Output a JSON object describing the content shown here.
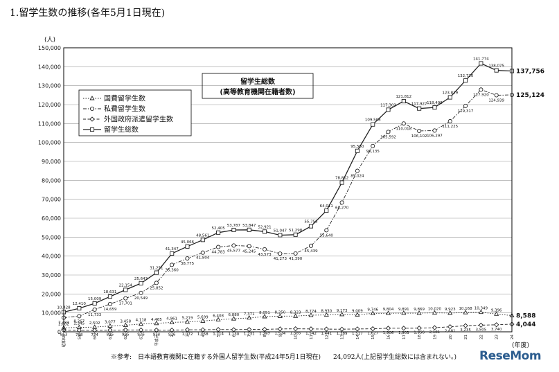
{
  "title": "1.留学生数の推移(各年5月1日現在)",
  "unit_label": "(人)",
  "x_unit_label": "(年度)",
  "footnote": "※参考:　日本語教育機関に在籍する外国人留学生数(平成24年5月1日現在)　　24,092人(上記留学生総数には含まれない。)",
  "watermark": "ReseMom",
  "colors": {
    "line": "#222222",
    "grid": "#9a9a9a",
    "frame": "#000000"
  },
  "chart_data": {
    "type": "line",
    "title": "",
    "annotation": [
      "留学生総数",
      "(高等教育機関在籍者数)"
    ],
    "xlabel": "(年度)",
    "ylabel": "(人)",
    "ylim": [
      0,
      150000
    ],
    "yticks": [
      "0",
      "10,000",
      "20,000",
      "30,000",
      "40,000",
      "50,000",
      "60,000",
      "70,000",
      "80,000",
      "90,000",
      "100,000",
      "110,000",
      "120,000",
      "130,000",
      "140,000",
      "150,000"
    ],
    "grid": true,
    "legend_position": "upper-left",
    "categories": [
      "昭和58",
      "59",
      "60",
      "61",
      "62",
      "63",
      "平成元",
      "2",
      "3",
      "4",
      "5",
      "6",
      "7",
      "8",
      "9",
      "10",
      "11",
      "12",
      "13",
      "14",
      "15",
      "16",
      "17",
      "18",
      "19",
      "20",
      "21",
      "22",
      "23",
      "24"
    ],
    "series": [
      {
        "name": "国費留学生数",
        "marker": "triangle",
        "dash": "dot",
        "values": [
          2082,
          2345,
          2502,
          3077,
          3458,
          4118,
          4465,
          4961,
          5219,
          5699,
          6408,
          6880,
          7371,
          8051,
          8250,
          8323,
          8774,
          8930,
          9173,
          9009,
          9746,
          9804,
          9891,
          9869,
          10020,
          9923,
          10168,
          10349,
          9396,
          8588
        ],
        "labels": [
          "2,082",
          "2,345",
          "2,502",
          "3,077",
          "3,458",
          "4,118",
          "4,465",
          "4,961",
          "5,219",
          "5,699",
          "6,408",
          "6,880",
          "7,371",
          "8,051",
          "8,250",
          "8,323",
          "8,774",
          "8,930",
          "9,173",
          "9,009",
          "9,746",
          "9,804",
          "9,891",
          "9,869",
          "10,020",
          "9,923",
          "10,168",
          "10,349",
          "9,396",
          "8,588"
        ]
      },
      {
        "name": "私費留学生数",
        "marker": "circle",
        "dash": "dashdot",
        "values": [
          7483,
          8267,
          11733,
          14659,
          17701,
          20549,
          25852,
          35360,
          38775,
          41804,
          44783,
          45577,
          45245,
          43573,
          41273,
          41390,
          45439,
          53640,
          68270,
          85024,
          98135,
          105592,
          110018,
          106102,
          106297,
          111225,
          119317,
          127920,
          124939,
          125124
        ],
        "labels": [
          "7,483",
          "8,267",
          "11,733",
          "14,659",
          "17,701",
          "20,549",
          "25,852",
          "35,360",
          "38,775",
          "41,804",
          "44,783",
          "45,577",
          "45,245",
          "43,573",
          "41,273",
          "41,390",
          "45,439",
          "53,640",
          "68,270",
          "85,024",
          "98,135",
          "105,592",
          "110,018",
          "106,102",
          "106,297",
          "111,225",
          "119,317",
          "127,920",
          "124,939",
          "125,124"
        ]
      },
      {
        "name": "外国政府派遣留学生数",
        "marker": "diamond",
        "dash": "dash",
        "values": [
          863,
          798,
          774,
          895,
          995,
          976,
          934,
          926,
          1072,
          1058,
          1214,
          1130,
          1231,
          1297,
          1524,
          1585,
          1542,
          1441,
          1389,
          1517,
          1627,
          1906,
          1903,
          1956,
          2181,
          2681,
          3235,
          3505,
          3740,
          4044
        ],
        "labels": [
          "863",
          "798",
          "774",
          "895",
          "995",
          "976",
          "934",
          "926",
          "1,072",
          "1,058",
          "1,214",
          "1,130",
          "1,231",
          "1,297",
          "1,524",
          "1,585",
          "1,542",
          "1,441",
          "1,389",
          "1,517",
          "1,627",
          "1,906",
          "1,903",
          "1,956",
          "2,181",
          "2,681",
          "3,235",
          "3,505",
          "3,740",
          "4,044"
        ]
      },
      {
        "name": "留学生総数",
        "marker": "square",
        "dash": "solid",
        "values": [
          10428,
          12410,
          15009,
          18631,
          22154,
          25643,
          31251,
          41347,
          45066,
          48561,
          52405,
          53787,
          53847,
          52921,
          51047,
          51298,
          55755,
          64011,
          78812,
          95550,
          109508,
          117302,
          121812,
          117927,
          118498,
          123829,
          132720,
          141774,
          138075,
          137756
        ],
        "labels": [
          "10,428",
          "12,410",
          "15,009",
          "18,631",
          "22,154",
          "25,643",
          "31,251",
          "41,347",
          "45,066",
          "48,561",
          "52,405",
          "53,787",
          "53,847",
          "52,921",
          "51,047",
          "51,298",
          "55,755",
          "64,011",
          "78,812",
          "95,550",
          "109,508",
          "117,302",
          "121,812",
          "117,927",
          "118,498",
          "123,829",
          "132,720",
          "141,774",
          "138,075",
          "137,756"
        ]
      }
    ]
  }
}
